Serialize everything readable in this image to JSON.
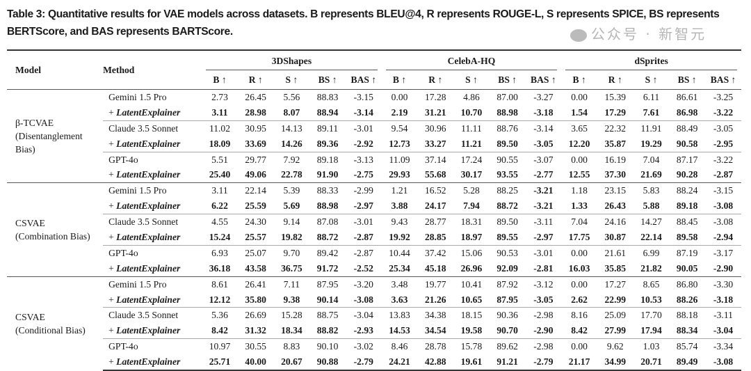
{
  "caption": "Table 3: Quantitative results for VAE models across datasets. B represents BLEU@4, R represents ROUGE-L, S represents SPICE, BS represents BERTScore, and BAS represents BARTScore.",
  "headers": {
    "model": "Model",
    "method": "Method",
    "datasets": [
      "3DShapes",
      "CelebA-HQ",
      "dSprites"
    ],
    "metrics": [
      "B ↑",
      "R ↑",
      "S ↑",
      "BS ↑",
      "BAS ↑"
    ]
  },
  "blocks": [
    {
      "model_lines": [
        "β-TCVAE",
        "(Disentanglement",
        "Bias)"
      ],
      "rows": [
        {
          "method": "Gemini 1.5 Pro",
          "latent": false,
          "values": [
            "2.73",
            "26.45",
            "5.56",
            "88.83",
            "-3.15",
            "0.00",
            "17.28",
            "4.86",
            "87.00",
            "-3.27",
            "0.00",
            "15.39",
            "6.11",
            "86.61",
            "-3.25"
          ]
        },
        {
          "method": "LatentExplainer",
          "latent": true,
          "values": [
            "3.11",
            "28.98",
            "8.07",
            "88.94",
            "-3.14",
            "2.19",
            "31.21",
            "10.70",
            "88.98",
            "-3.18",
            "1.54",
            "17.29",
            "7.61",
            "86.98",
            "-3.22"
          ]
        },
        {
          "method": "Claude 3.5 Sonnet",
          "latent": false,
          "values": [
            "11.02",
            "30.95",
            "14.13",
            "89.11",
            "-3.01",
            "9.54",
            "30.96",
            "11.11",
            "88.76",
            "-3.14",
            "3.65",
            "22.32",
            "11.91",
            "88.49",
            "-3.05"
          ]
        },
        {
          "method": "LatentExplainer",
          "latent": true,
          "values": [
            "18.09",
            "33.69",
            "14.26",
            "89.36",
            "-2.92",
            "12.73",
            "33.27",
            "11.21",
            "89.50",
            "-3.05",
            "12.20",
            "35.87",
            "19.29",
            "90.58",
            "-2.95"
          ]
        },
        {
          "method": "GPT-4o",
          "latent": false,
          "values": [
            "5.51",
            "29.77",
            "7.92",
            "89.18",
            "-3.13",
            "11.09",
            "37.14",
            "17.24",
            "90.55",
            "-3.07",
            "0.00",
            "16.19",
            "7.04",
            "87.17",
            "-3.22"
          ]
        },
        {
          "method": "LatentExplainer",
          "latent": true,
          "values": [
            "25.40",
            "49.06",
            "22.78",
            "91.90",
            "-2.75",
            "29.93",
            "55.68",
            "30.17",
            "93.55",
            "-2.77",
            "12.55",
            "37.30",
            "21.69",
            "90.28",
            "-2.87"
          ]
        }
      ]
    },
    {
      "model_lines": [
        "CSVAE",
        "(Combination Bias)"
      ],
      "rows": [
        {
          "method": "Gemini 1.5 Pro",
          "latent": false,
          "bold_indices": [
            9
          ],
          "values": [
            "3.11",
            "22.14",
            "5.39",
            "88.33",
            "-2.99",
            "1.21",
            "16.52",
            "5.28",
            "88.25",
            "-3.21",
            "1.18",
            "23.15",
            "5.83",
            "88.24",
            "-3.15"
          ]
        },
        {
          "method": "LatentExplainer",
          "latent": true,
          "values": [
            "6.22",
            "25.59",
            "5.69",
            "88.98",
            "-2.97",
            "3.88",
            "24.17",
            "7.94",
            "88.72",
            "-3.21",
            "1.33",
            "26.43",
            "5.88",
            "89.18",
            "-3.08"
          ]
        },
        {
          "method": "Claude 3.5 Sonnet",
          "latent": false,
          "values": [
            "4.55",
            "24.30",
            "9.14",
            "87.08",
            "-3.01",
            "9.43",
            "28.77",
            "18.31",
            "89.50",
            "-3.11",
            "7.04",
            "24.16",
            "14.27",
            "88.45",
            "-3.08"
          ]
        },
        {
          "method": "LatentExplainer",
          "latent": true,
          "values": [
            "15.24",
            "25.57",
            "19.82",
            "88.72",
            "-2.87",
            "19.92",
            "28.85",
            "18.97",
            "89.55",
            "-2.97",
            "17.75",
            "30.87",
            "22.14",
            "89.58",
            "-2.94"
          ]
        },
        {
          "method": "GPT-4o",
          "latent": false,
          "values": [
            "6.93",
            "25.07",
            "9.70",
            "89.42",
            "-2.87",
            "10.44",
            "37.42",
            "15.06",
            "90.53",
            "-3.01",
            "0.00",
            "21.61",
            "6.99",
            "87.19",
            "-3.17"
          ]
        },
        {
          "method": "LatentExplainer",
          "latent": true,
          "values": [
            "36.18",
            "43.58",
            "36.75",
            "91.72",
            "-2.52",
            "25.34",
            "45.18",
            "26.96",
            "92.09",
            "-2.81",
            "16.03",
            "35.85",
            "21.82",
            "90.05",
            "-2.90"
          ]
        }
      ]
    },
    {
      "model_lines": [
        "CSVAE",
        "(Conditional Bias)"
      ],
      "rows": [
        {
          "method": "Gemini 1.5 Pro",
          "latent": false,
          "values": [
            "8.61",
            "26.41",
            "7.11",
            "87.95",
            "-3.20",
            "3.48",
            "19.77",
            "10.41",
            "87.92",
            "-3.12",
            "0.00",
            "17.27",
            "8.65",
            "86.80",
            "-3.30"
          ]
        },
        {
          "method": "LatentExplainer",
          "latent": true,
          "values": [
            "12.12",
            "35.80",
            "9.38",
            "90.14",
            "-3.08",
            "3.63",
            "21.26",
            "10.65",
            "87.95",
            "-3.05",
            "2.62",
            "22.99",
            "10.53",
            "88.26",
            "-3.18"
          ]
        },
        {
          "method": "Claude 3.5 Sonnet",
          "latent": false,
          "values": [
            "5.36",
            "26.69",
            "15.28",
            "88.75",
            "-3.04",
            "13.83",
            "34.38",
            "18.15",
            "90.36",
            "-2.98",
            "8.16",
            "25.09",
            "17.70",
            "88.18",
            "-3.11"
          ]
        },
        {
          "method": "LatentExplainer",
          "latent": true,
          "values": [
            "8.42",
            "31.32",
            "18.34",
            "88.82",
            "-2.93",
            "14.53",
            "34.54",
            "19.58",
            "90.70",
            "-2.90",
            "8.42",
            "27.99",
            "17.94",
            "88.34",
            "-3.04"
          ]
        },
        {
          "method": "GPT-4o",
          "latent": false,
          "values": [
            "10.97",
            "30.55",
            "8.83",
            "90.10",
            "-3.02",
            "8.46",
            "28.78",
            "15.78",
            "89.62",
            "-2.98",
            "0.00",
            "9.62",
            "1.03",
            "85.74",
            "-3.34"
          ]
        },
        {
          "method": "LatentExplainer",
          "latent": true,
          "values": [
            "25.71",
            "40.00",
            "20.67",
            "90.88",
            "-2.79",
            "24.21",
            "42.88",
            "19.61",
            "91.21",
            "-2.79",
            "21.17",
            "34.99",
            "20.71",
            "89.49",
            "-3.08"
          ]
        }
      ]
    }
  ],
  "latent_prefix": "+ ",
  "watermark": "公众号 · 新智元"
}
